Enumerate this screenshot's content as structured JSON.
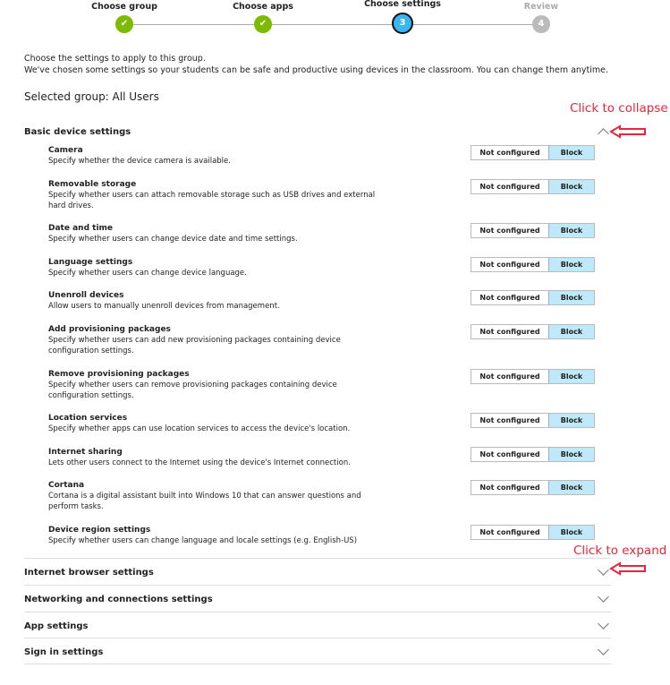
{
  "stepper": {
    "steps": [
      {
        "label": "Choose group",
        "state": "done",
        "marker": "check-icon"
      },
      {
        "label": "Choose apps",
        "state": "done",
        "marker": "check-icon"
      },
      {
        "label": "Choose settings",
        "state": "active",
        "number": "3"
      },
      {
        "label": "Review",
        "state": "future",
        "number": "4"
      }
    ]
  },
  "intro": {
    "line1": "Choose the settings to apply to this group.",
    "line2": "We've chosen some settings so your students can be safe and productive using devices in the classroom. You can change them anytime."
  },
  "selected_group": "Selected group: All Users",
  "basic": {
    "title": "Basic device settings",
    "expanded": true,
    "options": {
      "not_configured": "Not configured",
      "block": "Block"
    },
    "settings": [
      {
        "title": "Camera",
        "desc": "Specify whether the device camera is available.",
        "value": "Block"
      },
      {
        "title": "Removable storage",
        "desc": "Specify whether users can attach removable storage such as USB drives and external hard drives.",
        "value": "Block"
      },
      {
        "title": "Date and time",
        "desc": "Specify whether users can change device date and time settings.",
        "value": "Block"
      },
      {
        "title": "Language settings",
        "desc": "Specify whether users can change device language.",
        "value": "Block"
      },
      {
        "title": "Unenroll devices",
        "desc": "Allow users to manually unenroll devices from management.",
        "value": "Block"
      },
      {
        "title": "Add provisioning packages",
        "desc": "Specify whether users can add new provisioning packages containing device configuration settings.",
        "value": "Block"
      },
      {
        "title": "Remove provisioning packages",
        "desc": "Specify whether users can remove provisioning packages containing device configuration settings.",
        "value": "Block"
      },
      {
        "title": "Location services",
        "desc": "Specify whether apps can use location services to access the device's location.",
        "value": "Block"
      },
      {
        "title": "Internet sharing",
        "desc": "Lets other users connect to the Internet using the device's Internet connection.",
        "value": "Block"
      },
      {
        "title": "Cortana",
        "desc": "Cortana is a digital assistant built into Windows 10 that can answer questions and perform tasks.",
        "value": "Block"
      },
      {
        "title": "Device region settings",
        "desc": "Specify whether users can change language and locale settings (e.g. English-US)",
        "value": "Block"
      }
    ]
  },
  "collapsed_sections": [
    "Internet browser settings",
    "Networking and connections settings",
    "App settings",
    "Sign in settings"
  ],
  "annotations": {
    "collapse": "Click to collapse",
    "expand": "Click to expand",
    "color": "#e8253a"
  }
}
